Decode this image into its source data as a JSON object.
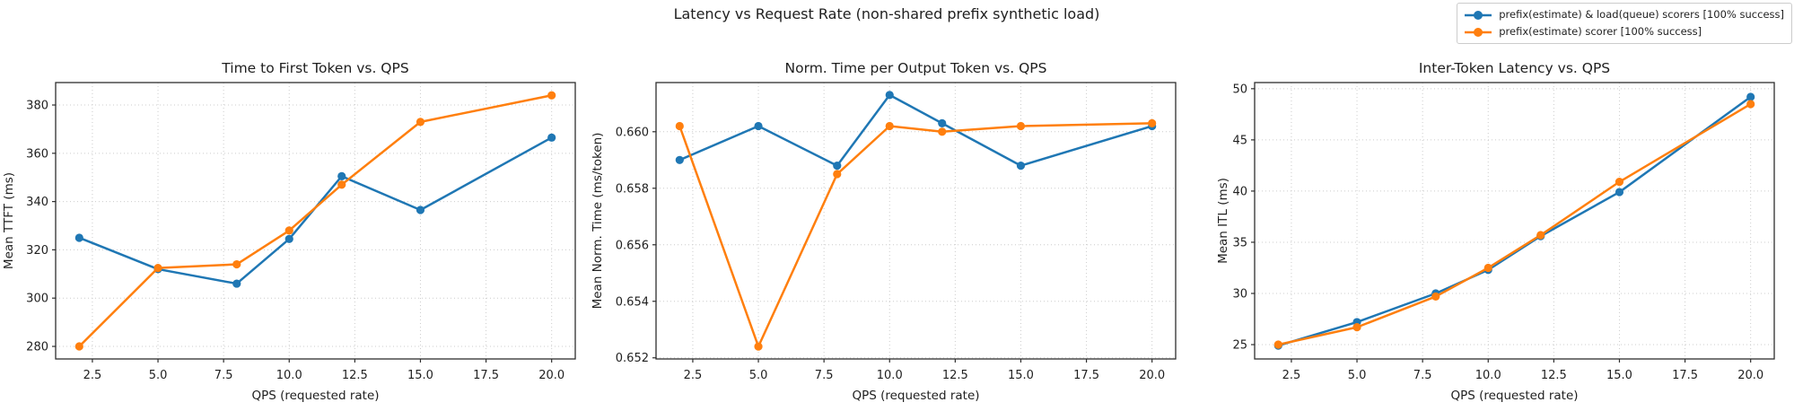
{
  "figure": {
    "title": "Latency vs Request Rate (non-shared prefix synthetic load)",
    "background": "#ffffff"
  },
  "legend": {
    "position": "top-right",
    "items": [
      {
        "label": "prefix(estimate) & load(queue) scorers [100% success]",
        "color": "#1f77b4",
        "marker": "circle-icon"
      },
      {
        "label": "prefix(estimate) scorer [100% success]",
        "color": "#ff7f0e",
        "marker": "circle-icon"
      }
    ]
  },
  "colors": {
    "series_blue": "#1f77b4",
    "series_orange": "#ff7f0e",
    "grid": "#cccccc",
    "spine": "#2e2e2e",
    "text": "#1f1f1f"
  },
  "chart_data": [
    {
      "type": "line",
      "title": "Time to First Token vs. QPS",
      "xlabel": "QPS (requested rate)",
      "ylabel": "Mean TTFT (ms)",
      "x": [
        2,
        5,
        8,
        10,
        12,
        15,
        20
      ],
      "xlim": [
        1.1,
        20.9
      ],
      "ylim": [
        274.8,
        389.3
      ],
      "xticks": [
        2.5,
        5.0,
        7.5,
        10.0,
        12.5,
        15.0,
        17.5,
        20.0
      ],
      "xtick_labels": [
        "2.5",
        "5.0",
        "7.5",
        "10.0",
        "12.5",
        "15.0",
        "17.5",
        "20.0"
      ],
      "yticks": [
        280,
        300,
        320,
        340,
        360,
        380
      ],
      "ytick_labels": [
        "280",
        "300",
        "320",
        "340",
        "360",
        "380"
      ],
      "grid": true,
      "series": [
        {
          "name": "prefix(estimate) & load(queue) scorers [100% success]",
          "color": "#1f77b4",
          "values": [
            325.0,
            312.0,
            306.0,
            324.5,
            350.5,
            336.5,
            366.5
          ]
        },
        {
          "name": "prefix(estimate) scorer [100% success]",
          "color": "#ff7f0e",
          "values": [
            280.0,
            312.5,
            314.0,
            328.0,
            347.0,
            373.0,
            384.0
          ]
        }
      ]
    },
    {
      "type": "line",
      "title": "Norm. Time per Output Token vs. QPS",
      "xlabel": "QPS (requested rate)",
      "ylabel": "Mean Norm. Time (ms/token)",
      "x": [
        2,
        5,
        8,
        10,
        12,
        15,
        20
      ],
      "xlim": [
        1.1,
        20.9
      ],
      "ylim": [
        0.65196,
        0.66174
      ],
      "xticks": [
        2.5,
        5.0,
        7.5,
        10.0,
        12.5,
        15.0,
        17.5,
        20.0
      ],
      "xtick_labels": [
        "2.5",
        "5.0",
        "7.5",
        "10.0",
        "12.5",
        "15.0",
        "17.5",
        "20.0"
      ],
      "yticks": [
        0.652,
        0.654,
        0.656,
        0.658,
        0.66
      ],
      "ytick_labels": [
        "0.652",
        "0.654",
        "0.656",
        "0.658",
        "0.660"
      ],
      "grid": true,
      "series": [
        {
          "name": "prefix(estimate) & load(queue) scorers [100% success]",
          "color": "#1f77b4",
          "values": [
            0.659,
            0.6602,
            0.6588,
            0.6613,
            0.6603,
            0.6588,
            0.6602
          ]
        },
        {
          "name": "prefix(estimate) scorer [100% success]",
          "color": "#ff7f0e",
          "values": [
            0.6602,
            0.6524,
            0.6585,
            0.6602,
            0.66,
            0.6602,
            0.6603
          ]
        }
      ]
    },
    {
      "type": "line",
      "title": "Inter-Token Latency vs. QPS",
      "xlabel": "QPS (requested rate)",
      "ylabel": "Mean ITL (ms)",
      "x": [
        2,
        5,
        8,
        10,
        12,
        15,
        20
      ],
      "xlim": [
        1.1,
        20.9
      ],
      "ylim": [
        23.6,
        50.6
      ],
      "xticks": [
        2.5,
        5.0,
        7.5,
        10.0,
        12.5,
        15.0,
        17.5,
        20.0
      ],
      "xtick_labels": [
        "2.5",
        "5.0",
        "7.5",
        "10.0",
        "12.5",
        "15.0",
        "17.5",
        "20.0"
      ],
      "yticks": [
        25,
        30,
        35,
        40,
        45,
        50
      ],
      "ytick_labels": [
        "25",
        "30",
        "35",
        "40",
        "45",
        "50"
      ],
      "grid": true,
      "series": [
        {
          "name": "prefix(estimate) & load(queue) scorers [100% success]",
          "color": "#1f77b4",
          "values": [
            24.9,
            27.2,
            30.0,
            32.3,
            35.6,
            39.9,
            49.2
          ]
        },
        {
          "name": "prefix(estimate) scorer [100% success]",
          "color": "#ff7f0e",
          "values": [
            25.0,
            26.7,
            29.7,
            32.5,
            35.7,
            40.9,
            48.5
          ]
        }
      ]
    }
  ]
}
